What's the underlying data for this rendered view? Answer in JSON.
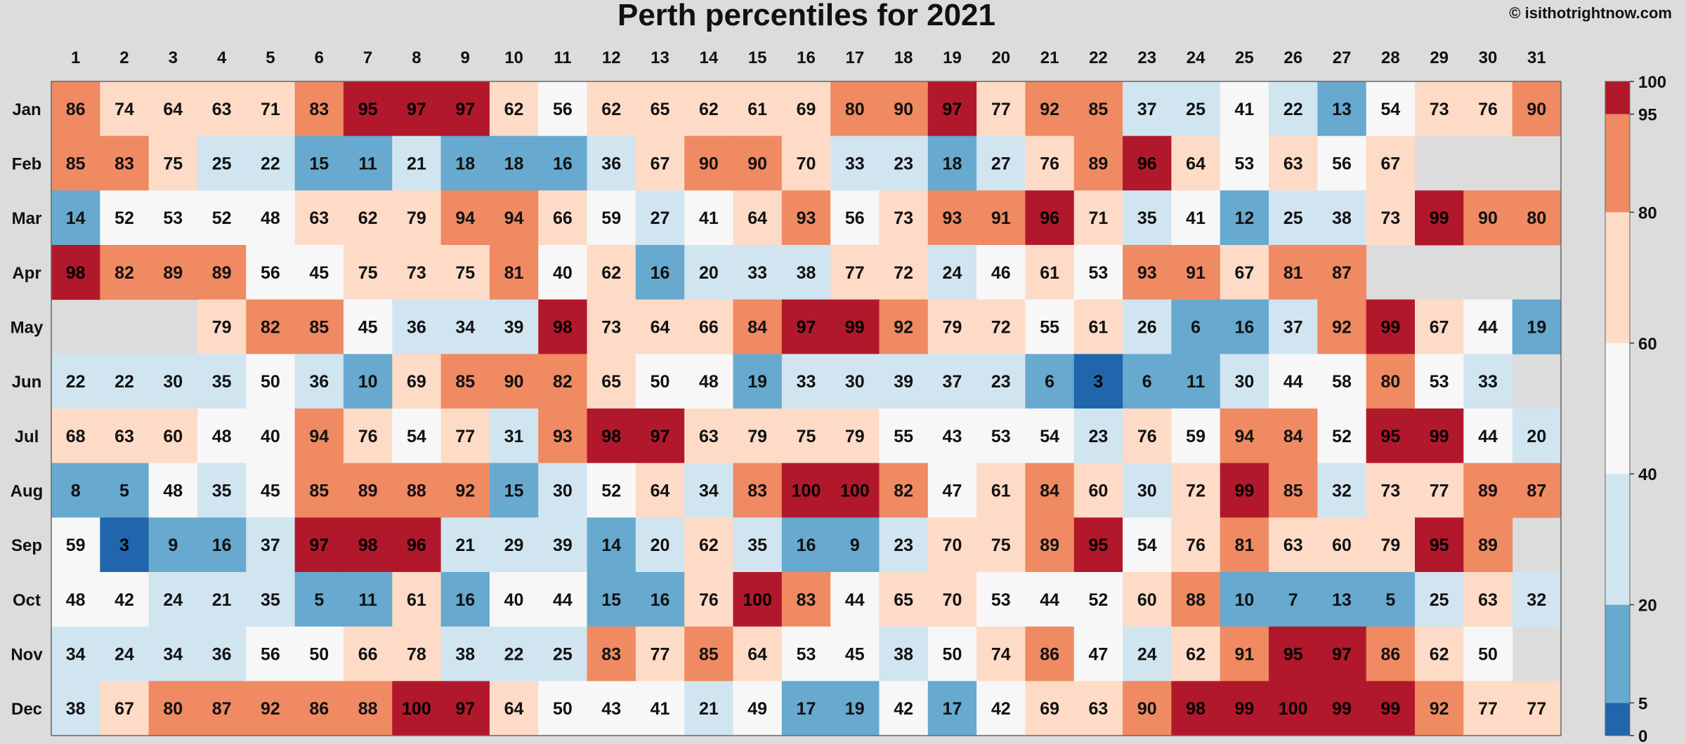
{
  "header": {
    "title": "Perth percentiles for 2021",
    "credit": "© isithotrightnow.com"
  },
  "colors": {
    "background": "#dcdcdc",
    "border": "#666666",
    "bins": [
      "#2166ac",
      "#67a9cf",
      "#d1e5f0",
      "#f7f7f7",
      "#fddbc7",
      "#ef8a62",
      "#b2182b"
    ]
  },
  "chart_data": {
    "type": "heatmap",
    "title": "Perth percentiles for 2021",
    "x_categories": [
      "1",
      "2",
      "3",
      "4",
      "5",
      "6",
      "7",
      "8",
      "9",
      "10",
      "11",
      "12",
      "13",
      "14",
      "15",
      "16",
      "17",
      "18",
      "19",
      "20",
      "21",
      "22",
      "23",
      "24",
      "25",
      "26",
      "27",
      "28",
      "29",
      "30",
      "31"
    ],
    "y_categories": [
      "Jan",
      "Feb",
      "Mar",
      "Apr",
      "May",
      "Jun",
      "Jul",
      "Aug",
      "Sep",
      "Oct",
      "Nov",
      "Dec"
    ],
    "values": [
      [
        86,
        74,
        64,
        63,
        71,
        83,
        95,
        97,
        97,
        62,
        56,
        62,
        65,
        62,
        61,
        69,
        80,
        90,
        97,
        77,
        92,
        85,
        37,
        25,
        41,
        22,
        13,
        54,
        73,
        76,
        90
      ],
      [
        85,
        83,
        75,
        25,
        22,
        15,
        11,
        21,
        18,
        18,
        16,
        36,
        67,
        90,
        90,
        70,
        33,
        23,
        18,
        27,
        76,
        89,
        96,
        64,
        53,
        63,
        56,
        67,
        null,
        null,
        null
      ],
      [
        14,
        52,
        53,
        52,
        48,
        63,
        62,
        79,
        94,
        94,
        66,
        59,
        27,
        41,
        64,
        93,
        56,
        73,
        93,
        91,
        96,
        71,
        35,
        41,
        12,
        25,
        38,
        73,
        99,
        90,
        80
      ],
      [
        98,
        82,
        89,
        89,
        56,
        45,
        75,
        73,
        75,
        81,
        40,
        62,
        16,
        20,
        33,
        38,
        77,
        72,
        24,
        46,
        61,
        53,
        93,
        91,
        67,
        81,
        87,
        null,
        null,
        null,
        null
      ],
      [
        null,
        null,
        null,
        79,
        82,
        85,
        45,
        36,
        34,
        39,
        98,
        73,
        64,
        66,
        84,
        97,
        99,
        92,
        79,
        72,
        55,
        61,
        26,
        6,
        16,
        37,
        92,
        99,
        67,
        44,
        19
      ],
      [
        22,
        22,
        30,
        35,
        50,
        36,
        10,
        69,
        85,
        90,
        82,
        65,
        50,
        48,
        19,
        33,
        30,
        39,
        37,
        23,
        6,
        3,
        6,
        11,
        30,
        44,
        58,
        80,
        53,
        33,
        null
      ],
      [
        68,
        63,
        60,
        48,
        40,
        94,
        76,
        54,
        77,
        31,
        93,
        98,
        97,
        63,
        79,
        75,
        79,
        55,
        43,
        53,
        54,
        23,
        76,
        59,
        94,
        84,
        52,
        95,
        99,
        44,
        20
      ],
      [
        8,
        5,
        48,
        35,
        45,
        85,
        89,
        88,
        92,
        15,
        30,
        52,
        64,
        34,
        83,
        100,
        100,
        82,
        47,
        61,
        84,
        60,
        30,
        72,
        99,
        85,
        32,
        73,
        77,
        89,
        87
      ],
      [
        59,
        3,
        9,
        16,
        37,
        97,
        98,
        96,
        21,
        29,
        39,
        14,
        20,
        62,
        35,
        16,
        9,
        23,
        70,
        75,
        89,
        95,
        54,
        76,
        81,
        63,
        60,
        79,
        95,
        89,
        null
      ],
      [
        48,
        42,
        24,
        21,
        35,
        5,
        11,
        61,
        16,
        40,
        44,
        15,
        16,
        76,
        100,
        83,
        44,
        65,
        70,
        53,
        44,
        52,
        60,
        88,
        10,
        7,
        13,
        5,
        25,
        63,
        32
      ],
      [
        34,
        24,
        34,
        36,
        56,
        50,
        66,
        78,
        38,
        22,
        25,
        83,
        77,
        85,
        64,
        53,
        45,
        38,
        50,
        74,
        86,
        47,
        24,
        62,
        91,
        95,
        97,
        86,
        62,
        50,
        null
      ],
      [
        38,
        67,
        80,
        87,
        92,
        86,
        88,
        100,
        97,
        64,
        50,
        43,
        41,
        21,
        49,
        17,
        19,
        42,
        17,
        42,
        69,
        63,
        90,
        98,
        99,
        100,
        99,
        99,
        92,
        77,
        77
      ]
    ],
    "legend": {
      "type": "colorbar",
      "ticks": [
        "0",
        "5",
        "20",
        "40",
        "60",
        "80",
        "95",
        "100"
      ],
      "bin_edges": [
        0,
        5,
        20,
        40,
        60,
        80,
        95,
        100
      ]
    },
    "grid": false
  }
}
